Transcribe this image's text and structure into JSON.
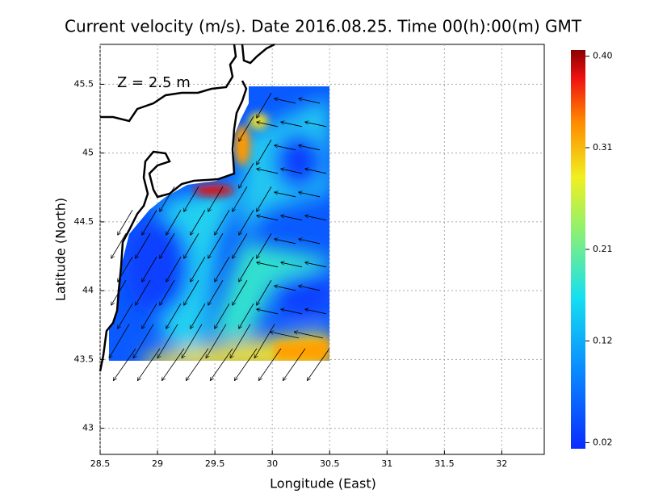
{
  "title": "Current velocity (m/s). Date 2016.08.25. Time 00(h):00(m) GMT",
  "annotation": "Z = 2.5 m",
  "x_axis": {
    "label": "Longitude (East)",
    "lim": [
      28.5,
      32.37
    ],
    "ticks": [
      28.5,
      29,
      29.5,
      30,
      30.5,
      31,
      31.5,
      32
    ]
  },
  "y_axis": {
    "label": "Latitude (North)",
    "lim": [
      42.81,
      45.79
    ],
    "ticks": [
      43,
      43.5,
      44,
      44.5,
      45,
      45.5
    ]
  },
  "colorbar": {
    "lim": [
      0.014,
      0.406
    ],
    "ticks": [
      {
        "value": 0.4,
        "label": "0.40"
      },
      0.31,
      0.21,
      0.12,
      0.02
    ]
  }
}
